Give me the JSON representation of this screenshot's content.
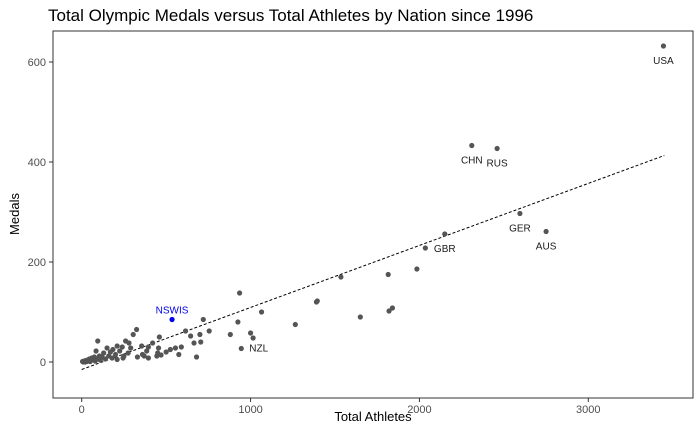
{
  "chart_data": {
    "type": "scatter",
    "title": "Total Olympic Medals versus Total Athletes by Nation since 1996",
    "xlabel": "Total Athletes",
    "ylabel": "Medals",
    "xlim": [
      -170,
      3620
    ],
    "ylim": [
      -72,
      662
    ],
    "x_ticks": [
      0,
      1000,
      2000,
      3000
    ],
    "y_ticks": [
      0,
      200,
      400,
      600
    ],
    "grid": false,
    "colors": {
      "points": "#555555",
      "highlight": "#0000ee",
      "trend": "#000000",
      "text": "#1a1a1a"
    },
    "trend_line": {
      "x": [
        0,
        3450
      ],
      "y": [
        -15,
        413
      ],
      "style": "dashed"
    },
    "labeled_points": [
      {
        "label": "USA",
        "x": 3445,
        "y": 632
      },
      {
        "label": "CHN",
        "x": 2310,
        "y": 433
      },
      {
        "label": "RUS",
        "x": 2460,
        "y": 427
      },
      {
        "label": "GER",
        "x": 2595,
        "y": 297
      },
      {
        "label": "AUS",
        "x": 2750,
        "y": 261
      },
      {
        "label": "GBR",
        "x": 2150,
        "y": 256
      },
      {
        "label": "NZL",
        "x": 945,
        "y": 27
      },
      {
        "label": "NSWIS",
        "x": 535,
        "y": 85,
        "highlight": true
      }
    ],
    "points": [
      [
        2035,
        228
      ],
      [
        1985,
        186
      ],
      [
        1815,
        175
      ],
      [
        1535,
        170
      ],
      [
        1395,
        122
      ],
      [
        1390,
        120
      ],
      [
        1650,
        90
      ],
      [
        1840,
        108
      ],
      [
        1820,
        102
      ],
      [
        1265,
        75
      ],
      [
        1065,
        100
      ],
      [
        935,
        138
      ],
      [
        925,
        80
      ],
      [
        880,
        55
      ],
      [
        1000,
        58
      ],
      [
        1015,
        48
      ],
      [
        755,
        62
      ],
      [
        720,
        85
      ],
      [
        700,
        55
      ],
      [
        705,
        40
      ],
      [
        645,
        52
      ],
      [
        665,
        38
      ],
      [
        615,
        62
      ],
      [
        555,
        28
      ],
      [
        590,
        30
      ],
      [
        575,
        15
      ],
      [
        525,
        25
      ],
      [
        460,
        50
      ],
      [
        455,
        28
      ],
      [
        450,
        18
      ],
      [
        445,
        12
      ],
      [
        420,
        38
      ],
      [
        395,
        30
      ],
      [
        385,
        22
      ],
      [
        370,
        12
      ],
      [
        355,
        32
      ],
      [
        325,
        65
      ],
      [
        305,
        55
      ],
      [
        290,
        28
      ],
      [
        280,
        38
      ],
      [
        275,
        18
      ],
      [
        260,
        42
      ],
      [
        250,
        12
      ],
      [
        240,
        30
      ],
      [
        225,
        22
      ],
      [
        210,
        32
      ],
      [
        200,
        15
      ],
      [
        185,
        25
      ],
      [
        180,
        8
      ],
      [
        170,
        20
      ],
      [
        160,
        12
      ],
      [
        150,
        28
      ],
      [
        140,
        6
      ],
      [
        130,
        18
      ],
      [
        120,
        10
      ],
      [
        110,
        4
      ],
      [
        105,
        12
      ],
      [
        95,
        42
      ],
      [
        90,
        6
      ],
      [
        85,
        22
      ],
      [
        80,
        2
      ],
      [
        75,
        10
      ],
      [
        70,
        5
      ],
      [
        60,
        8
      ],
      [
        55,
        3
      ],
      [
        50,
        1
      ],
      [
        45,
        6
      ],
      [
        40,
        2
      ],
      [
        35,
        4
      ],
      [
        30,
        1
      ],
      [
        25,
        3
      ],
      [
        20,
        0
      ],
      [
        15,
        2
      ],
      [
        10,
        0
      ],
      [
        5,
        1
      ],
      [
        210,
        5
      ],
      [
        245,
        8
      ],
      [
        330,
        10
      ],
      [
        360,
        15
      ],
      [
        395,
        8
      ],
      [
        470,
        14
      ],
      [
        500,
        20
      ],
      [
        680,
        10
      ]
    ]
  }
}
